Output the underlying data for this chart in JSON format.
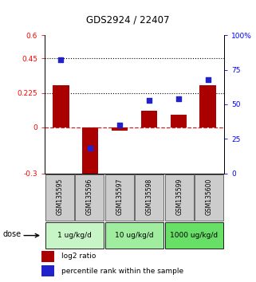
{
  "title": "GDS2924 / 22407",
  "samples": [
    "GSM135595",
    "GSM135596",
    "GSM135597",
    "GSM135598",
    "GSM135599",
    "GSM135600"
  ],
  "log2_ratio": [
    0.275,
    -0.35,
    -0.02,
    0.11,
    0.08,
    0.275
  ],
  "percentile_rank": [
    82,
    18,
    35,
    53,
    54,
    68
  ],
  "dose_groups": [
    {
      "label": "1 ug/kg/d",
      "samples": [
        0,
        1
      ],
      "color": "#c8f5c8"
    },
    {
      "label": "10 ug/kg/d",
      "samples": [
        2,
        3
      ],
      "color": "#a0eda0"
    },
    {
      "label": "1000 ug/kg/d",
      "samples": [
        4,
        5
      ],
      "color": "#68e068"
    }
  ],
  "ylim_left": [
    -0.3,
    0.6
  ],
  "ylim_right": [
    0,
    100
  ],
  "yticks_left": [
    -0.3,
    0,
    0.225,
    0.45,
    0.6
  ],
  "ytick_labels_left": [
    "-0.3",
    "0",
    "0.225",
    "0.45",
    "0.6"
  ],
  "yticks_right": [
    0,
    25,
    50,
    75,
    100
  ],
  "ytick_labels_right": [
    "0",
    "25",
    "50",
    "75",
    "100%"
  ],
  "hlines": [
    0.45,
    0.225
  ],
  "bar_color": "#aa0000",
  "dot_color": "#2222cc",
  "zero_line_color": "#cc2222",
  "bar_width": 0.55,
  "dot_size": 22,
  "legend_bar_label": "log2 ratio",
  "legend_dot_label": "percentile rank within the sample",
  "dose_label": "dose",
  "sample_box_color": "#cccccc",
  "sample_box_border": "#555555"
}
